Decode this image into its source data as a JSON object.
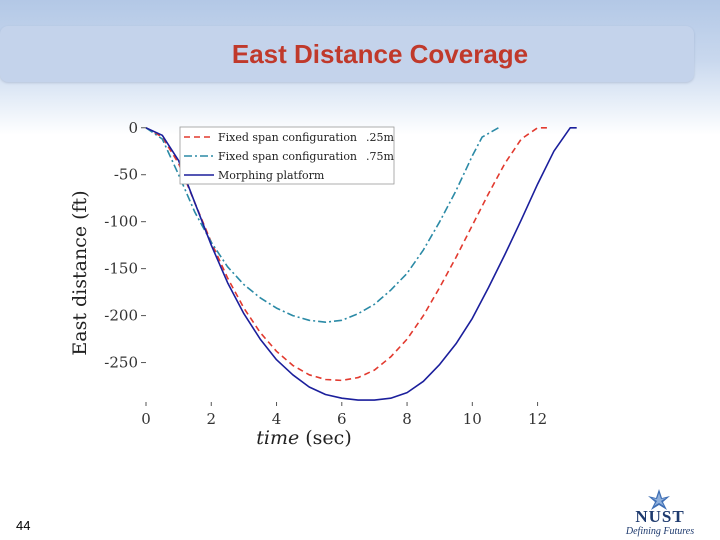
{
  "slide": {
    "title": "East Distance Coverage",
    "page_number": "44",
    "logo_word": "NUST",
    "logo_tagline": "Defining Futures"
  },
  "chart_data": {
    "type": "line",
    "xlabel_italic": "time",
    "xlabel_unit": "(sec)",
    "ylabel": "East distance (ft)",
    "xlim": [
      0,
      13.3
    ],
    "ylim": [
      -292,
      4
    ],
    "xticks": [
      0,
      2,
      4,
      6,
      8,
      10,
      12
    ],
    "yticks": [
      0,
      -50,
      -100,
      -150,
      -200,
      -250
    ],
    "grid": false,
    "legend_position": "top-left",
    "series": [
      {
        "name": "Fixed span configuration",
        "legend_suffix": ".25m",
        "color": "#e23a2f",
        "dash": "6,4",
        "x": [
          0,
          0.5,
          1,
          1.5,
          2,
          2.5,
          3,
          3.5,
          4,
          4.5,
          5,
          5.5,
          6,
          6.5,
          7,
          7.5,
          8,
          8.5,
          9,
          9.5,
          10,
          10.5,
          11,
          11.5,
          12,
          12.3
        ],
        "y": [
          0,
          -10,
          -38,
          -80,
          -122,
          -160,
          -192,
          -218,
          -238,
          -253,
          -263,
          -268,
          -269,
          -266,
          -258,
          -244,
          -225,
          -200,
          -170,
          -138,
          -104,
          -70,
          -38,
          -12,
          0,
          0
        ]
      },
      {
        "name": "Fixed span configuration",
        "legend_suffix": ".75m",
        "color": "#2b8aa6",
        "dash": "8,3,2,3",
        "x": [
          0,
          0.5,
          1,
          1.5,
          2,
          2.5,
          3,
          3.5,
          4,
          4.5,
          5,
          5.5,
          6,
          6.5,
          7,
          7.5,
          8,
          8.5,
          9,
          9.5,
          10,
          10.3,
          10.8
        ],
        "y": [
          0,
          -12,
          -50,
          -90,
          -122,
          -148,
          -167,
          -181,
          -192,
          -200,
          -205,
          -207,
          -205,
          -198,
          -188,
          -173,
          -155,
          -130,
          -100,
          -67,
          -30,
          -10,
          0
        ]
      },
      {
        "name": "Morphing platform",
        "legend_suffix": "",
        "color": "#1b1f9c",
        "dash": "",
        "x": [
          0,
          0.5,
          1,
          1.5,
          2,
          2.5,
          3,
          3.5,
          4,
          4.5,
          5,
          5.5,
          6,
          6.5,
          7,
          7.5,
          8,
          8.5,
          9,
          9.5,
          10,
          10.5,
          11,
          11.5,
          12,
          12.5,
          13,
          13.2
        ],
        "y": [
          0,
          -8,
          -35,
          -80,
          -125,
          -165,
          -198,
          -225,
          -247,
          -263,
          -276,
          -284,
          -288,
          -290,
          -290,
          -288,
          -282,
          -270,
          -252,
          -230,
          -203,
          -170,
          -135,
          -98,
          -60,
          -25,
          0,
          0
        ]
      }
    ]
  }
}
